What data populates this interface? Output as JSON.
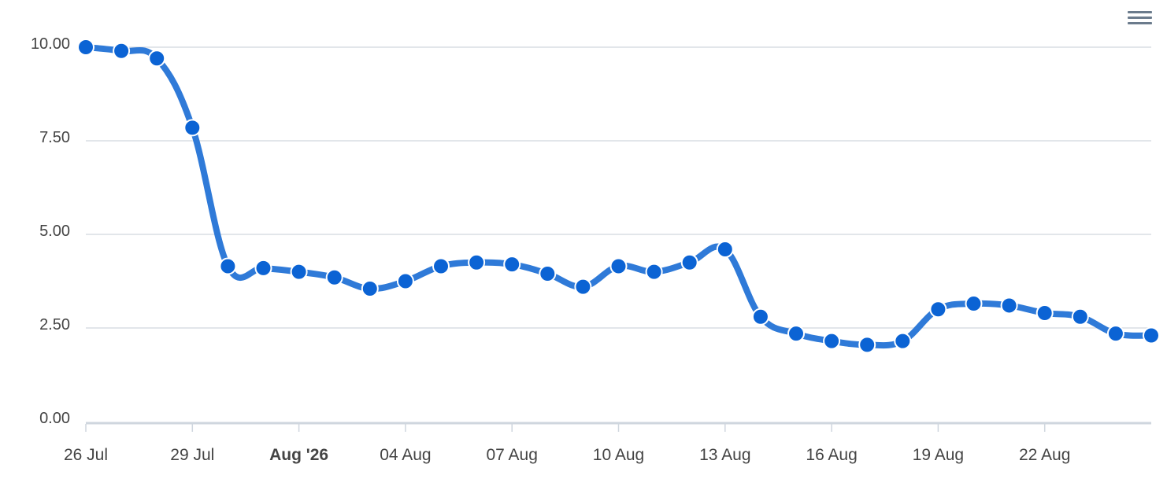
{
  "toolbar": {
    "menu_icon": "hamburger-menu-icon"
  },
  "colors": {
    "line": "#2f7ad8",
    "marker": "#0b63d4",
    "marker_stroke": "#ffffff",
    "grid": "#d9dde3",
    "axis": "#cfd6de",
    "tick_label": "#444444",
    "menu_icon": "#6b7b8c"
  },
  "chart_data": {
    "type": "line",
    "title": "",
    "xlabel": "",
    "ylabel": "",
    "x": [
      "2026-07-26",
      "2026-07-27",
      "2026-07-28",
      "2026-07-29",
      "2026-07-30",
      "2026-07-31",
      "2026-08-01",
      "2026-08-02",
      "2026-08-03",
      "2026-08-04",
      "2026-08-05",
      "2026-08-06",
      "2026-08-07",
      "2026-08-08",
      "2026-08-09",
      "2026-08-10",
      "2026-08-11",
      "2026-08-12",
      "2026-08-13",
      "2026-08-14",
      "2026-08-15",
      "2026-08-16",
      "2026-08-17",
      "2026-08-18",
      "2026-08-19",
      "2026-08-20",
      "2026-08-21",
      "2026-08-22",
      "2026-08-23",
      "2026-08-24",
      "2026-08-25"
    ],
    "series": [
      {
        "values": [
          10.0,
          9.9,
          9.7,
          7.85,
          4.15,
          4.1,
          4.0,
          3.85,
          3.55,
          3.75,
          4.15,
          4.25,
          4.2,
          3.95,
          3.6,
          4.15,
          4.0,
          4.25,
          4.6,
          2.8,
          2.35,
          2.15,
          2.05,
          2.15,
          3.0,
          3.15,
          3.1,
          2.9,
          2.8,
          2.35,
          2.3
        ]
      }
    ],
    "ylim": [
      0,
      10
    ],
    "yticks": [
      "0.00",
      "2.50",
      "5.00",
      "7.50",
      "10.00"
    ],
    "xticks": [
      {
        "date": "2026-07-26",
        "label": "26 Jul",
        "bold": false
      },
      {
        "date": "2026-07-29",
        "label": "29 Jul",
        "bold": false
      },
      {
        "date": "2026-08-01",
        "label": "Aug '26",
        "bold": true
      },
      {
        "date": "2026-08-04",
        "label": "04 Aug",
        "bold": false
      },
      {
        "date": "2026-08-07",
        "label": "07 Aug",
        "bold": false
      },
      {
        "date": "2026-08-10",
        "label": "10 Aug",
        "bold": false
      },
      {
        "date": "2026-08-13",
        "label": "13 Aug",
        "bold": false
      },
      {
        "date": "2026-08-16",
        "label": "16 Aug",
        "bold": false
      },
      {
        "date": "2026-08-19",
        "label": "19 Aug",
        "bold": false
      },
      {
        "date": "2026-08-22",
        "label": "22 Aug",
        "bold": false
      }
    ],
    "grid": true,
    "legend": "none",
    "smooth": true
  }
}
